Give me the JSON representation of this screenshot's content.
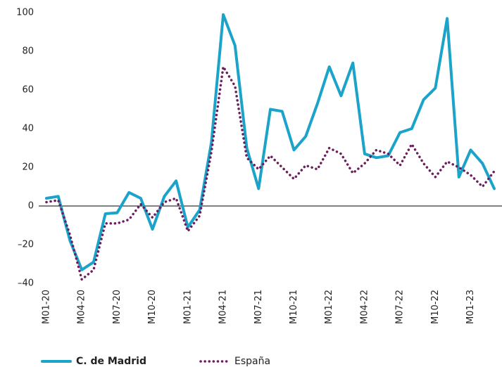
{
  "chart_data": {
    "type": "line",
    "categories": [
      "M01-20",
      null,
      null,
      "M04-20",
      null,
      null,
      "M07-20",
      null,
      null,
      "M10-20",
      null,
      null,
      "M01-21",
      null,
      null,
      "M04-21",
      null,
      null,
      "M07-21",
      null,
      null,
      "M10-21",
      null,
      null,
      "M01-22",
      null,
      null,
      "M04-22",
      null,
      null,
      "M07-22",
      null,
      null,
      "M10-22",
      null,
      null,
      "M01-23",
      null,
      null
    ],
    "series": [
      {
        "name": "C. de Madrid",
        "color": "#1ba3c9",
        "style": "solid",
        "values": [
          4,
          5,
          -18,
          -33,
          -29,
          -4,
          -3.5,
          7,
          4,
          -12,
          5,
          13,
          -11,
          -2,
          33,
          99,
          83,
          30,
          9,
          50,
          49,
          29,
          36,
          53,
          72,
          57,
          74,
          27,
          25,
          26,
          38,
          40,
          55,
          61,
          97,
          15,
          29,
          22,
          9
        ]
      },
      {
        "name": "España",
        "color": "#6b1f5e",
        "style": "dotted",
        "values": [
          2,
          3,
          -15,
          -38,
          -33,
          -9,
          -9,
          -7,
          1,
          -6,
          2,
          4,
          -13,
          -5,
          28,
          72,
          62,
          25,
          19,
          26,
          20,
          14,
          21,
          19,
          30,
          27,
          17,
          22,
          29,
          27,
          21,
          32,
          22,
          15,
          23,
          20,
          16,
          10,
          18
        ]
      }
    ],
    "ylim": [
      -40,
      100
    ],
    "yticks": [
      {
        "value": -40,
        "label": "–40"
      },
      {
        "value": -20,
        "label": "–20"
      },
      0,
      20,
      40,
      60,
      80,
      100
    ]
  }
}
